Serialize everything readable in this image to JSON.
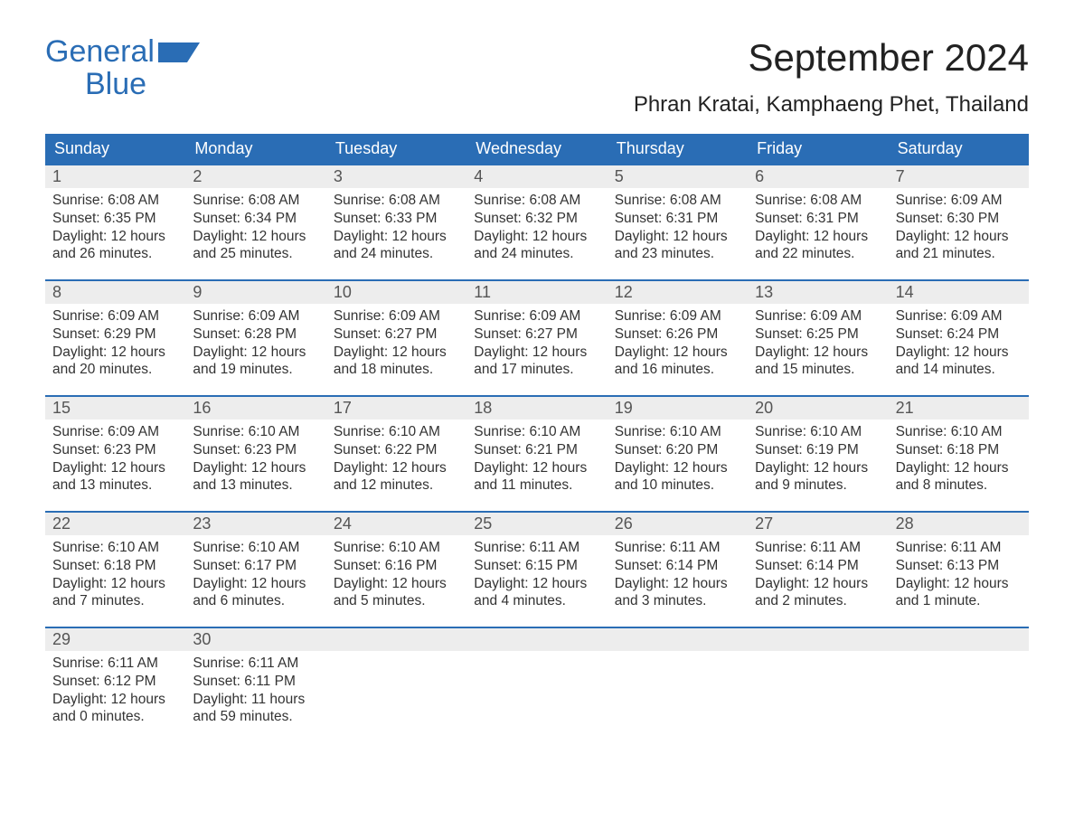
{
  "logo": {
    "text1": "General",
    "text2": "Blue",
    "color": "#2a6db5"
  },
  "title": "September 2024",
  "location": "Phran Kratai, Kamphaeng Phet, Thailand",
  "colors": {
    "header_bg": "#2a6db5",
    "header_text": "#ffffff",
    "week_border": "#2a6db5",
    "daynum_bg": "#ededed",
    "body_text": "#333333"
  },
  "fonts": {
    "title_pt": 42,
    "location_pt": 24,
    "dow_pt": 18,
    "body_pt": 15.5
  },
  "days_of_week": [
    "Sunday",
    "Monday",
    "Tuesday",
    "Wednesday",
    "Thursday",
    "Friday",
    "Saturday"
  ],
  "weeks": [
    [
      {
        "n": "1",
        "sunrise": "Sunrise: 6:08 AM",
        "sunset": "Sunset: 6:35 PM",
        "day1": "Daylight: 12 hours",
        "day2": "and 26 minutes."
      },
      {
        "n": "2",
        "sunrise": "Sunrise: 6:08 AM",
        "sunset": "Sunset: 6:34 PM",
        "day1": "Daylight: 12 hours",
        "day2": "and 25 minutes."
      },
      {
        "n": "3",
        "sunrise": "Sunrise: 6:08 AM",
        "sunset": "Sunset: 6:33 PM",
        "day1": "Daylight: 12 hours",
        "day2": "and 24 minutes."
      },
      {
        "n": "4",
        "sunrise": "Sunrise: 6:08 AM",
        "sunset": "Sunset: 6:32 PM",
        "day1": "Daylight: 12 hours",
        "day2": "and 24 minutes."
      },
      {
        "n": "5",
        "sunrise": "Sunrise: 6:08 AM",
        "sunset": "Sunset: 6:31 PM",
        "day1": "Daylight: 12 hours",
        "day2": "and 23 minutes."
      },
      {
        "n": "6",
        "sunrise": "Sunrise: 6:08 AM",
        "sunset": "Sunset: 6:31 PM",
        "day1": "Daylight: 12 hours",
        "day2": "and 22 minutes."
      },
      {
        "n": "7",
        "sunrise": "Sunrise: 6:09 AM",
        "sunset": "Sunset: 6:30 PM",
        "day1": "Daylight: 12 hours",
        "day2": "and 21 minutes."
      }
    ],
    [
      {
        "n": "8",
        "sunrise": "Sunrise: 6:09 AM",
        "sunset": "Sunset: 6:29 PM",
        "day1": "Daylight: 12 hours",
        "day2": "and 20 minutes."
      },
      {
        "n": "9",
        "sunrise": "Sunrise: 6:09 AM",
        "sunset": "Sunset: 6:28 PM",
        "day1": "Daylight: 12 hours",
        "day2": "and 19 minutes."
      },
      {
        "n": "10",
        "sunrise": "Sunrise: 6:09 AM",
        "sunset": "Sunset: 6:27 PM",
        "day1": "Daylight: 12 hours",
        "day2": "and 18 minutes."
      },
      {
        "n": "11",
        "sunrise": "Sunrise: 6:09 AM",
        "sunset": "Sunset: 6:27 PM",
        "day1": "Daylight: 12 hours",
        "day2": "and 17 minutes."
      },
      {
        "n": "12",
        "sunrise": "Sunrise: 6:09 AM",
        "sunset": "Sunset: 6:26 PM",
        "day1": "Daylight: 12 hours",
        "day2": "and 16 minutes."
      },
      {
        "n": "13",
        "sunrise": "Sunrise: 6:09 AM",
        "sunset": "Sunset: 6:25 PM",
        "day1": "Daylight: 12 hours",
        "day2": "and 15 minutes."
      },
      {
        "n": "14",
        "sunrise": "Sunrise: 6:09 AM",
        "sunset": "Sunset: 6:24 PM",
        "day1": "Daylight: 12 hours",
        "day2": "and 14 minutes."
      }
    ],
    [
      {
        "n": "15",
        "sunrise": "Sunrise: 6:09 AM",
        "sunset": "Sunset: 6:23 PM",
        "day1": "Daylight: 12 hours",
        "day2": "and 13 minutes."
      },
      {
        "n": "16",
        "sunrise": "Sunrise: 6:10 AM",
        "sunset": "Sunset: 6:23 PM",
        "day1": "Daylight: 12 hours",
        "day2": "and 13 minutes."
      },
      {
        "n": "17",
        "sunrise": "Sunrise: 6:10 AM",
        "sunset": "Sunset: 6:22 PM",
        "day1": "Daylight: 12 hours",
        "day2": "and 12 minutes."
      },
      {
        "n": "18",
        "sunrise": "Sunrise: 6:10 AM",
        "sunset": "Sunset: 6:21 PM",
        "day1": "Daylight: 12 hours",
        "day2": "and 11 minutes."
      },
      {
        "n": "19",
        "sunrise": "Sunrise: 6:10 AM",
        "sunset": "Sunset: 6:20 PM",
        "day1": "Daylight: 12 hours",
        "day2": "and 10 minutes."
      },
      {
        "n": "20",
        "sunrise": "Sunrise: 6:10 AM",
        "sunset": "Sunset: 6:19 PM",
        "day1": "Daylight: 12 hours",
        "day2": "and 9 minutes."
      },
      {
        "n": "21",
        "sunrise": "Sunrise: 6:10 AM",
        "sunset": "Sunset: 6:18 PM",
        "day1": "Daylight: 12 hours",
        "day2": "and 8 minutes."
      }
    ],
    [
      {
        "n": "22",
        "sunrise": "Sunrise: 6:10 AM",
        "sunset": "Sunset: 6:18 PM",
        "day1": "Daylight: 12 hours",
        "day2": "and 7 minutes."
      },
      {
        "n": "23",
        "sunrise": "Sunrise: 6:10 AM",
        "sunset": "Sunset: 6:17 PM",
        "day1": "Daylight: 12 hours",
        "day2": "and 6 minutes."
      },
      {
        "n": "24",
        "sunrise": "Sunrise: 6:10 AM",
        "sunset": "Sunset: 6:16 PM",
        "day1": "Daylight: 12 hours",
        "day2": "and 5 minutes."
      },
      {
        "n": "25",
        "sunrise": "Sunrise: 6:11 AM",
        "sunset": "Sunset: 6:15 PM",
        "day1": "Daylight: 12 hours",
        "day2": "and 4 minutes."
      },
      {
        "n": "26",
        "sunrise": "Sunrise: 6:11 AM",
        "sunset": "Sunset: 6:14 PM",
        "day1": "Daylight: 12 hours",
        "day2": "and 3 minutes."
      },
      {
        "n": "27",
        "sunrise": "Sunrise: 6:11 AM",
        "sunset": "Sunset: 6:14 PM",
        "day1": "Daylight: 12 hours",
        "day2": "and 2 minutes."
      },
      {
        "n": "28",
        "sunrise": "Sunrise: 6:11 AM",
        "sunset": "Sunset: 6:13 PM",
        "day1": "Daylight: 12 hours",
        "day2": "and 1 minute."
      }
    ],
    [
      {
        "n": "29",
        "sunrise": "Sunrise: 6:11 AM",
        "sunset": "Sunset: 6:12 PM",
        "day1": "Daylight: 12 hours",
        "day2": "and 0 minutes."
      },
      {
        "n": "30",
        "sunrise": "Sunrise: 6:11 AM",
        "sunset": "Sunset: 6:11 PM",
        "day1": "Daylight: 11 hours",
        "day2": "and 59 minutes."
      },
      {
        "empty": true
      },
      {
        "empty": true
      },
      {
        "empty": true
      },
      {
        "empty": true
      },
      {
        "empty": true
      }
    ]
  ]
}
